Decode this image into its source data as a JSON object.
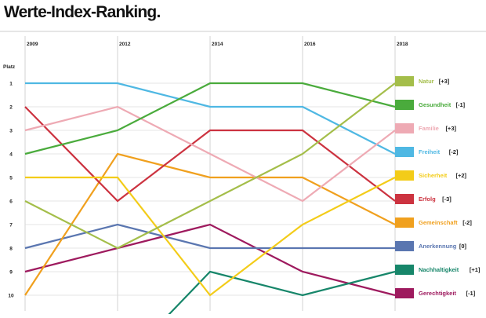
{
  "chart_data": {
    "type": "line",
    "title": "Werte-Index-Ranking.",
    "ylabel": "Platz",
    "x": [
      "2009",
      "2012",
      "2014",
      "2016",
      "2018"
    ],
    "y_ticks": [
      "1",
      "2",
      "3",
      "4",
      "5",
      "6",
      "7",
      "8",
      "9",
      "10"
    ],
    "ylim": [
      1,
      10
    ],
    "y_inverted": true,
    "grid": true,
    "legend_position": "right",
    "series": [
      {
        "name": "Natur",
        "change": "[+3]",
        "color": "#a4be4a",
        "values": [
          6,
          8,
          6,
          4,
          1
        ]
      },
      {
        "name": "Gesundheit",
        "change": "[-1]",
        "color": "#4aab3c",
        "values": [
          4,
          3,
          1,
          1,
          2
        ]
      },
      {
        "name": "Familie",
        "change": "[+3]",
        "color": "#eeaab4",
        "values": [
          3,
          2,
          4,
          6,
          3
        ]
      },
      {
        "name": "Freiheit",
        "change": "[-2]",
        "color": "#4fb8e3",
        "values": [
          1,
          1,
          2,
          2,
          4
        ]
      },
      {
        "name": "Sicherheit",
        "change": "[+2]",
        "color": "#f3cc19",
        "values": [
          5,
          5,
          10,
          7,
          5
        ]
      },
      {
        "name": "Erfolg",
        "change": "[-3]",
        "color": "#cc3340",
        "values": [
          2,
          6,
          3,
          3,
          6
        ]
      },
      {
        "name": "Gemeinschaft",
        "change": "[-2]",
        "color": "#f0a01e",
        "values": [
          10,
          4,
          5,
          5,
          7
        ]
      },
      {
        "name": "Anerkennung",
        "change": "[0]",
        "color": "#5a76b0",
        "values": [
          8,
          7,
          8,
          8,
          8
        ]
      },
      {
        "name": "Nachhaltigkeit",
        "change": "[+1]",
        "color": "#17866a",
        "values": [
          null,
          null,
          9,
          10,
          9
        ],
        "entry_from_below": true
      },
      {
        "name": "Gerechtigkeit",
        "change": "[-1]",
        "color": "#9e1a5e",
        "values": [
          9,
          8,
          7,
          9,
          10
        ]
      }
    ]
  }
}
